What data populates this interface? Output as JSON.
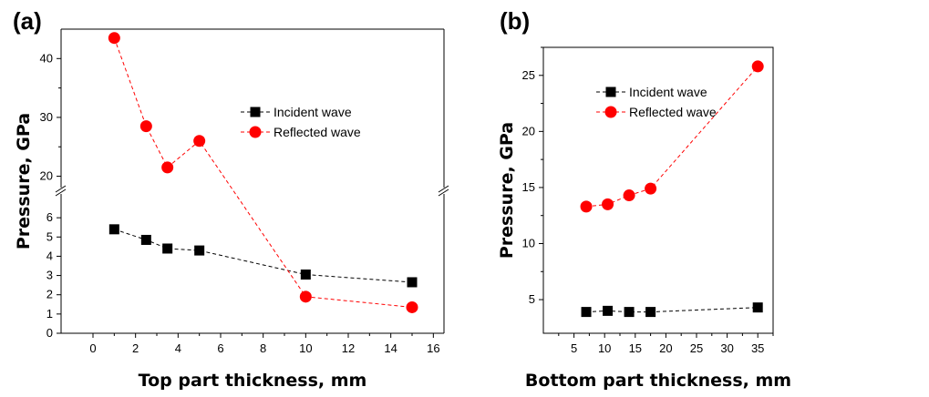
{
  "chart_data": [
    {
      "panel_label": "(a)",
      "type": "scatter",
      "xlabel": "Top part thickness, mm",
      "ylabel": "Pressure, GPa",
      "xlim": [
        -1.5,
        16.5
      ],
      "xticks": [
        "0",
        "2",
        "4",
        "6",
        "8",
        "10",
        "12",
        "14",
        "16"
      ],
      "y_axis_broken": true,
      "ylim_lower": [
        0,
        7
      ],
      "yticks_lower": [
        "0",
        "1",
        "2",
        "3",
        "4",
        "5",
        "6"
      ],
      "ylim_upper": [
        19,
        45
      ],
      "yticks_upper": [
        "20",
        "30",
        "40"
      ],
      "legend_position": "top-right",
      "grid": false,
      "series": [
        {
          "name": "Incident wave",
          "marker": "square",
          "color": "#000000",
          "x": [
            1,
            2.5,
            3.5,
            5,
            10,
            15
          ],
          "y": [
            5.4,
            4.85,
            4.4,
            4.3,
            3.05,
            2.65
          ]
        },
        {
          "name": "Reflected wave",
          "marker": "circle",
          "color": "#ff0000",
          "x": [
            1,
            2.5,
            3.5,
            5,
            10,
            15
          ],
          "y": [
            43.5,
            28.5,
            21.5,
            26,
            1.9,
            1.35
          ]
        }
      ]
    },
    {
      "panel_label": "(b)",
      "type": "scatter",
      "xlabel": "Bottom part thickness, mm",
      "ylabel": "Pressure, GPa",
      "xlim": [
        0,
        37.5
      ],
      "xticks": [
        "5",
        "10",
        "15",
        "20",
        "25",
        "30",
        "35"
      ],
      "ylim": [
        2,
        27.5
      ],
      "yticks": [
        "5",
        "10",
        "15",
        "20",
        "25"
      ],
      "legend_position": "top-left",
      "grid": false,
      "series": [
        {
          "name": "Incident wave",
          "marker": "square",
          "color": "#000000",
          "x": [
            7,
            10.5,
            14,
            17.5,
            35
          ],
          "y": [
            3.9,
            4.0,
            3.9,
            3.9,
            4.3
          ]
        },
        {
          "name": "Reflected wave",
          "marker": "circle",
          "color": "#ff0000",
          "x": [
            7,
            10.5,
            14,
            17.5,
            35
          ],
          "y": [
            13.3,
            13.5,
            14.3,
            14.9,
            25.8
          ]
        }
      ]
    }
  ]
}
